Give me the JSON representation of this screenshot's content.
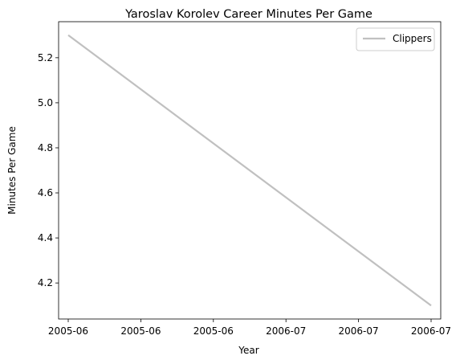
{
  "chart_data": {
    "type": "line",
    "title": "Yaroslav Korolev Career Minutes Per Game",
    "xlabel": "Year",
    "ylabel": "Minutes Per Game",
    "x_tick_labels": [
      "2005-06",
      "2005-06",
      "2005-06",
      "2006-07",
      "2006-07",
      "2006-07"
    ],
    "y_ticks": [
      4.2,
      4.4,
      4.6,
      4.8,
      5.0,
      5.2
    ],
    "y_tick_labels": [
      "4.2",
      "4.4",
      "4.6",
      "4.8",
      "5.0",
      "5.2"
    ],
    "ylim": [
      4.04,
      5.36
    ],
    "x": [
      "2005-06",
      "2006-07"
    ],
    "series": [
      {
        "name": "Clippers",
        "values": [
          5.3,
          4.1
        ],
        "color": "#c0c0c0"
      }
    ],
    "legend": {
      "placement": "top-right"
    },
    "grid": false
  }
}
